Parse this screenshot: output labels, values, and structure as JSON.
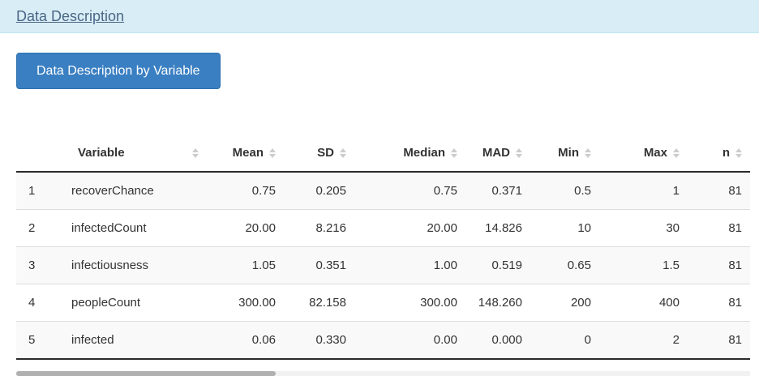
{
  "header": {
    "title": "Data Description"
  },
  "toolbar": {
    "button_label": "Data Description by Variable"
  },
  "table": {
    "columns": [
      "",
      "Variable",
      "Mean",
      "SD",
      "Median",
      "MAD",
      "Min",
      "Max",
      "n"
    ],
    "rows": [
      [
        "1",
        "recoverChance",
        "0.75",
        "0.205",
        "0.75",
        "0.371",
        "0.5",
        "1",
        "81"
      ],
      [
        "2",
        "infectedCount",
        "20.00",
        "8.216",
        "20.00",
        "14.826",
        "10",
        "30",
        "81"
      ],
      [
        "3",
        "infectiousness",
        "1.05",
        "0.351",
        "1.00",
        "0.519",
        "0.65",
        "1.5",
        "81"
      ],
      [
        "4",
        "peopleCount",
        "300.00",
        "82.158",
        "300.00",
        "148.260",
        "200",
        "400",
        "81"
      ],
      [
        "5",
        "infected",
        "0.06",
        "0.330",
        "0.00",
        "0.000",
        "0",
        "2",
        "81"
      ]
    ]
  },
  "colors": {
    "header_bar_bg": "#d9edf7",
    "header_bar_border": "#bce8f1",
    "title_link": "#4a6785",
    "button_bg": "#3a7fc2",
    "row_stripe": "#f9f9f9",
    "row_border": "#dddddd",
    "table_dark_border": "#2a2a2a",
    "sort_icon": "#cccccc",
    "text": "#333333"
  }
}
